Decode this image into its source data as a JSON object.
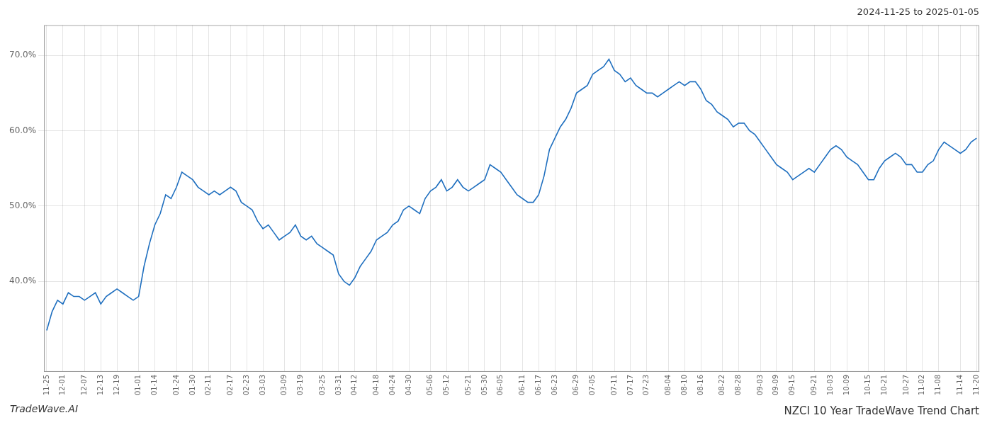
{
  "chart_data": {
    "type": "line",
    "title": "NZCI 10 Year TradeWave Trend Chart",
    "subtitle": "2024-11-25 to 2025-01-05",
    "annotations": [
      "TradeWave.AI"
    ],
    "categories": [
      "11-25",
      null,
      null,
      "12-01",
      null,
      null,
      null,
      "12-07",
      null,
      null,
      "12-13",
      null,
      null,
      "12-19",
      null,
      null,
      null,
      "01-01",
      null,
      null,
      "01-14",
      null,
      null,
      null,
      "01-24",
      null,
      null,
      "01-30",
      null,
      null,
      "02-11",
      null,
      null,
      null,
      "02-17",
      null,
      null,
      "02-23",
      null,
      null,
      "03-03",
      null,
      null,
      null,
      "03-09",
      null,
      null,
      "03-19",
      null,
      null,
      null,
      "03-25",
      null,
      null,
      "03-31",
      null,
      null,
      "04-12",
      null,
      null,
      null,
      "04-18",
      null,
      null,
      "04-24",
      null,
      null,
      "04-30",
      null,
      null,
      null,
      "05-06",
      null,
      null,
      "05-12",
      null,
      null,
      null,
      "05-21",
      null,
      null,
      "05-30",
      null,
      null,
      "06-05",
      null,
      null,
      null,
      "06-11",
      null,
      null,
      "06-17",
      null,
      null,
      "06-23",
      null,
      null,
      null,
      "06-29",
      null,
      null,
      "07-05",
      null,
      null,
      null,
      "07-11",
      null,
      null,
      "07-17",
      null,
      null,
      "07-23",
      null,
      null,
      null,
      "08-04",
      null,
      null,
      "08-10",
      null,
      null,
      "08-16",
      null,
      null,
      null,
      "08-22",
      null,
      null,
      "08-28",
      null,
      null,
      null,
      "09-03",
      null,
      null,
      "09-09",
      null,
      null,
      "09-15",
      null,
      null,
      null,
      "09-21",
      null,
      null,
      "10-03",
      null,
      null,
      "10-09",
      null,
      null,
      null,
      "10-15",
      null,
      null,
      "10-21",
      null,
      null,
      null,
      "10-27",
      null,
      null,
      "11-02",
      null,
      null,
      "11-08",
      null,
      null,
      null,
      "11-14",
      null,
      null,
      "11-20"
    ],
    "values": [
      33.5,
      36.0,
      37.5,
      37.0,
      38.5,
      38.0,
      38.0,
      37.5,
      38.0,
      38.5,
      37.0,
      38.0,
      38.5,
      39.0,
      38.5,
      38.0,
      37.5,
      38.0,
      42.0,
      45.0,
      47.5,
      49.0,
      51.5,
      51.0,
      52.5,
      54.5,
      54.0,
      53.5,
      52.5,
      52.0,
      51.5,
      52.0,
      51.5,
      52.0,
      52.5,
      52.0,
      50.5,
      50.0,
      49.5,
      48.0,
      47.0,
      47.5,
      46.5,
      45.5,
      46.0,
      46.5,
      47.5,
      46.0,
      45.5,
      46.0,
      45.0,
      44.5,
      44.0,
      43.5,
      41.0,
      40.0,
      39.5,
      40.5,
      42.0,
      43.0,
      44.0,
      45.5,
      46.0,
      46.5,
      47.5,
      48.0,
      49.5,
      50.0,
      49.5,
      49.0,
      51.0,
      52.0,
      52.5,
      53.5,
      52.0,
      52.5,
      53.5,
      52.5,
      52.0,
      52.5,
      53.0,
      53.5,
      55.5,
      55.0,
      54.5,
      53.5,
      52.5,
      51.5,
      51.0,
      50.5,
      50.5,
      51.5,
      54.0,
      57.5,
      59.0,
      60.5,
      61.5,
      63.0,
      65.0,
      65.5,
      66.0,
      67.5,
      68.0,
      68.5,
      69.5,
      68.0,
      67.5,
      66.5,
      67.0,
      66.0,
      65.5,
      65.0,
      65.0,
      64.5,
      65.0,
      65.5,
      66.0,
      66.5,
      66.0,
      66.5,
      66.5,
      65.5,
      64.0,
      63.5,
      62.5,
      62.0,
      61.5,
      60.5,
      61.0,
      61.0,
      60.0,
      59.5,
      58.5,
      57.5,
      56.5,
      55.5,
      55.0,
      54.5,
      53.5,
      54.0,
      54.5,
      55.0,
      54.5,
      55.5,
      56.5,
      57.5,
      58.0,
      57.5,
      56.5,
      56.0,
      55.5,
      54.5,
      53.5,
      53.5,
      55.0,
      56.0,
      56.5,
      57.0,
      56.5,
      55.5,
      55.5,
      54.5,
      54.5,
      55.5,
      56.0,
      57.5,
      58.5,
      58.0,
      57.5,
      57.0,
      57.5,
      58.5,
      59.0
    ],
    "color": "#1f6fbf",
    "ylim": [
      28,
      74
    ],
    "yticks": [
      {
        "value": 40.0,
        "label": "40.0%"
      },
      {
        "value": 50.0,
        "label": "50.0%"
      },
      {
        "value": 60.0,
        "label": "60.0%"
      },
      {
        "value": 70.0,
        "label": "70.0%"
      }
    ],
    "grid": true
  }
}
